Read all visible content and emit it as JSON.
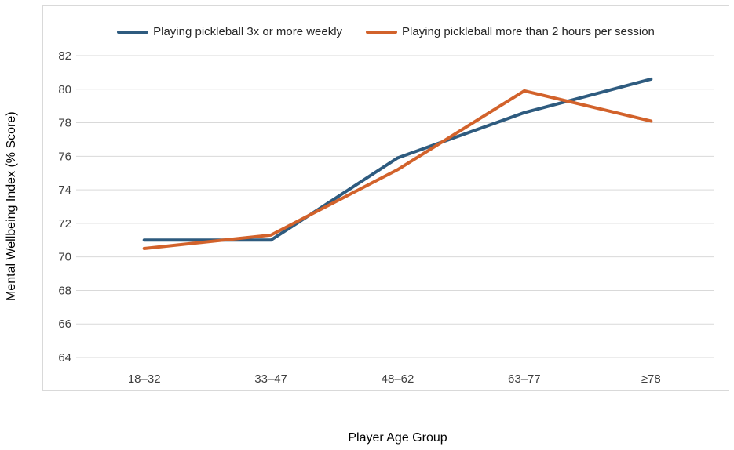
{
  "chart_data": {
    "type": "line",
    "title": "",
    "xlabel": "Player Age Group",
    "ylabel": "Mental Wellbeing Index (% Score)",
    "categories": [
      "18–32",
      "33–47",
      "48–62",
      "63–77",
      "≥78"
    ],
    "series": [
      {
        "name": "Playing pickleball 3x or more weekly",
        "color": "#2E5B7F",
        "values": [
          71.0,
          71.0,
          75.9,
          78.6,
          80.6
        ]
      },
      {
        "name": "Playing pickleball more than 2 hours per session",
        "color": "#D2622B",
        "values": [
          70.5,
          71.3,
          75.2,
          79.9,
          78.1
        ]
      }
    ],
    "y_ticks": [
      64,
      66,
      68,
      70,
      72,
      74,
      76,
      78,
      80,
      82
    ],
    "ylim": [
      64,
      83
    ],
    "grid": "horizontal",
    "legend_position": "top"
  },
  "colors": {
    "plot_border": "#d9d9d9",
    "gridline": "#d9d9d9",
    "tick_text": "#3f3f3f",
    "title_text": "#000000",
    "legend_text": "#262626",
    "background": "#ffffff"
  }
}
